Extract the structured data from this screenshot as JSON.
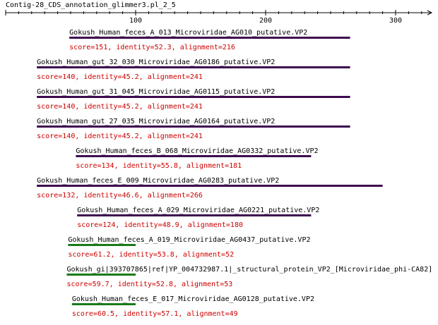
{
  "title": "Contig-28_CDS_annotation_glimmer3.pl_2_5",
  "axis": {
    "ticks": [
      {
        "value": 100,
        "label": "100"
      },
      {
        "value": 200,
        "label": "200"
      },
      {
        "value": 300,
        "label": "300"
      }
    ]
  },
  "colors": {
    "text": "#000000",
    "score_text": "#cc0000",
    "bar_high": "#3d0a4f",
    "bar_low": "#1a7a1a"
  },
  "hits": [
    {
      "name": "Gokush_Human_feces_A_013_Microviridae_AG010_putative.VP2",
      "score_line": "score=151, identity=52.3, alignment=216",
      "start": 49,
      "end": 265,
      "color": "bar_high"
    },
    {
      "name": "Gokush_Human_gut_32_030_Microviridae_AG0186_putative.VP2",
      "score_line": "score=140, identity=45.2, alignment=241",
      "start": 24,
      "end": 265,
      "color": "bar_high"
    },
    {
      "name": "Gokush_Human_gut_31_045_Microviridae_AG0115_putative.VP2",
      "score_line": "score=140, identity=45.2, alignment=241",
      "start": 24,
      "end": 265,
      "color": "bar_high"
    },
    {
      "name": "Gokush_Human_gut_27_035_Microviridae_AG0164_putative.VP2",
      "score_line": "score=140, identity=45.2, alignment=241",
      "start": 24,
      "end": 265,
      "color": "bar_high"
    },
    {
      "name": "Gokush_Human_feces_B_068_Microviridae_AG0332_putative.VP2",
      "score_line": "score=134, identity=55.8, alignment=181",
      "start": 54,
      "end": 235,
      "color": "bar_high"
    },
    {
      "name": "Gokush_Human_feces_E_009_Microviridae_AG0283_putative.VP2",
      "score_line": "score=132, identity=46.6, alignment=266",
      "start": 24,
      "end": 290,
      "color": "bar_high"
    },
    {
      "name": "Gokush_Human_feces_A_029_Microviridae_AG0221_putative.VP2",
      "score_line": "score=124, identity=48.9, alignment=180",
      "start": 55,
      "end": 235,
      "color": "bar_high"
    },
    {
      "name": "Gokush_Human_feces_A_019_Microviridae_AG0437_putative.VP2",
      "score_line": "score=61.2, identity=53.8, alignment=52",
      "start": 48,
      "end": 100,
      "color": "bar_low"
    },
    {
      "name": "Gokush_gi|393707865|ref|YP_004732987.1|_structural_protein_VP2_[Microviridae_phi-CA82]",
      "score_line": "score=59.7, identity=52.8, alignment=53",
      "start": 47,
      "end": 100,
      "color": "bar_low"
    },
    {
      "name": "Gokush_Human_feces_E_017_Microviridae_AG0128_putative.VP2",
      "score_line": "score=60.5, identity=57.1, alignment=49",
      "start": 51,
      "end": 100,
      "color": "bar_low"
    }
  ]
}
